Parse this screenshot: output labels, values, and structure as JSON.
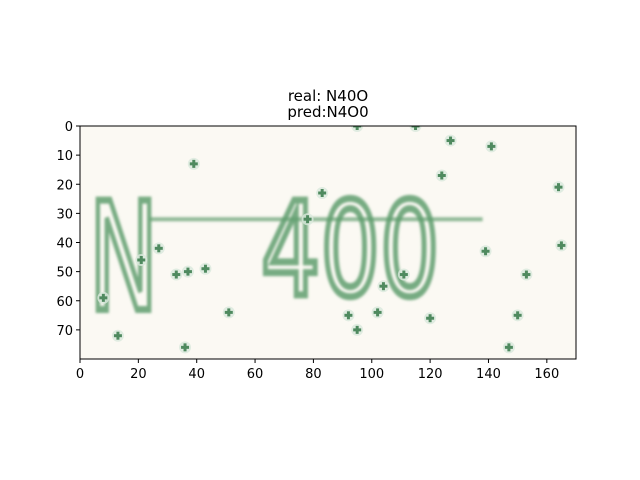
{
  "chart_data": {
    "type": "image",
    "title_lines": [
      "real: N40O",
      "pred:N4O0"
    ],
    "xlim": [
      0,
      170
    ],
    "ylim": [
      0,
      80
    ],
    "y_axis_inverted": true,
    "xticks": [
      0,
      20,
      40,
      60,
      80,
      100,
      120,
      140,
      160
    ],
    "yticks": [
      0,
      10,
      20,
      30,
      40,
      50,
      60,
      70
    ],
    "image_text": "N 400",
    "colors": {
      "background": "#fbf9f3",
      "ink": "#5f9e6e",
      "noise": "#4f8a5f"
    },
    "noise_points": [
      {
        "x": 95,
        "y": 0
      },
      {
        "x": 115,
        "y": 0
      },
      {
        "x": 127,
        "y": 5
      },
      {
        "x": 141,
        "y": 7
      },
      {
        "x": 39,
        "y": 13
      },
      {
        "x": 124,
        "y": 17
      },
      {
        "x": 164,
        "y": 21
      },
      {
        "x": 83,
        "y": 23
      },
      {
        "x": 78,
        "y": 32
      },
      {
        "x": 27,
        "y": 42
      },
      {
        "x": 165,
        "y": 41
      },
      {
        "x": 139,
        "y": 43
      },
      {
        "x": 21,
        "y": 46
      },
      {
        "x": 43,
        "y": 49
      },
      {
        "x": 33,
        "y": 51
      },
      {
        "x": 37,
        "y": 50
      },
      {
        "x": 111,
        "y": 51
      },
      {
        "x": 153,
        "y": 51
      },
      {
        "x": 104,
        "y": 55
      },
      {
        "x": 8,
        "y": 59
      },
      {
        "x": 51,
        "y": 64
      },
      {
        "x": 92,
        "y": 65
      },
      {
        "x": 102,
        "y": 64
      },
      {
        "x": 120,
        "y": 66
      },
      {
        "x": 150,
        "y": 65
      },
      {
        "x": 95,
        "y": 70
      },
      {
        "x": 13,
        "y": 72
      },
      {
        "x": 36,
        "y": 76
      },
      {
        "x": 147,
        "y": 76
      }
    ],
    "strike_line": {
      "x": [
        24,
        138
      ],
      "y": [
        32,
        32
      ]
    }
  }
}
